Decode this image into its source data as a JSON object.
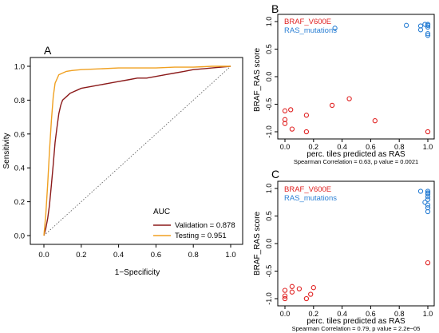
{
  "panel_a": {
    "letter": "A",
    "xlabel": "1−Specificity",
    "ylabel": "Sensitivity",
    "xticks": [
      "0.0",
      "0.2",
      "0.4",
      "0.6",
      "0.8",
      "1.0"
    ],
    "yticks": [
      "0.0",
      "0.2",
      "0.4",
      "0.6",
      "0.8",
      "1.0"
    ],
    "legend_title": "AUC",
    "legend": [
      {
        "label": "Validation = 0.878",
        "color": "#8b1a1a"
      },
      {
        "label": "Testing = 0.951",
        "color": "#f0a020"
      }
    ]
  },
  "panel_b": {
    "letter": "B",
    "xlabel": "perc. tiles predicted as RAS",
    "ylabel": "BRAF_RAS score",
    "xticks": [
      "0.0",
      "0.2",
      "0.4",
      "0.6",
      "0.8",
      "1.0"
    ],
    "yticks": [
      "-1.0",
      "-0.5",
      "0.0",
      "0.5",
      "1.0"
    ],
    "legend": [
      {
        "label": "BRAF_V600E",
        "color": "#e02020"
      },
      {
        "label": "RAS_mutations",
        "color": "#2a7fd4"
      }
    ],
    "annotation": "Spearman Correlation = 0.63, p value = 0.0021"
  },
  "panel_c": {
    "letter": "C",
    "xlabel": "perc. tiles predicted as RAS",
    "ylabel": "BRAF_RAS score",
    "xticks": [
      "0.0",
      "0.2",
      "0.4",
      "0.6",
      "0.8",
      "1.0"
    ],
    "yticks": [
      "-1.0",
      "-0.5",
      "0.0",
      "0.5",
      "1.0"
    ],
    "legend": [
      {
        "label": "BRAF_V600E",
        "color": "#e02020"
      },
      {
        "label": "RAS_mutations",
        "color": "#2a7fd4"
      }
    ],
    "annotation": "Spearman Correlation = 0.79, p value = 2.2e−05"
  },
  "chart_data": [
    {
      "type": "line",
      "xlim": [
        0,
        1
      ],
      "ylim": [
        0,
        1
      ],
      "series": [
        {
          "name": "Validation = 0.878",
          "color": "#8b1a1a",
          "x": [
            0.0,
            0.01,
            0.02,
            0.03,
            0.04,
            0.05,
            0.06,
            0.07,
            0.08,
            0.09,
            0.1,
            0.12,
            0.14,
            0.16,
            0.18,
            0.2,
            0.25,
            0.3,
            0.35,
            0.4,
            0.45,
            0.5,
            0.55,
            0.6,
            0.65,
            0.7,
            0.75,
            0.8,
            0.9,
            1.0
          ],
          "y": [
            0.0,
            0.04,
            0.1,
            0.18,
            0.3,
            0.42,
            0.55,
            0.64,
            0.72,
            0.77,
            0.8,
            0.82,
            0.84,
            0.85,
            0.86,
            0.87,
            0.88,
            0.89,
            0.9,
            0.91,
            0.92,
            0.93,
            0.93,
            0.94,
            0.95,
            0.96,
            0.97,
            0.98,
            0.99,
            1.0
          ]
        },
        {
          "name": "Testing = 0.951",
          "color": "#f0a020",
          "x": [
            0.0,
            0.01,
            0.02,
            0.03,
            0.04,
            0.05,
            0.06,
            0.08,
            0.1,
            0.12,
            0.15,
            0.2,
            0.3,
            0.4,
            0.5,
            0.6,
            0.7,
            0.8,
            0.9,
            1.0
          ],
          "y": [
            0.0,
            0.12,
            0.3,
            0.5,
            0.68,
            0.82,
            0.9,
            0.95,
            0.96,
            0.97,
            0.975,
            0.98,
            0.985,
            0.99,
            0.99,
            0.99,
            0.995,
            0.995,
            1.0,
            1.0
          ]
        }
      ],
      "reference_line": [
        [
          0,
          0
        ],
        [
          1,
          1
        ]
      ]
    },
    {
      "type": "scatter",
      "xlim": [
        0,
        1
      ],
      "ylim": [
        -1.0,
        1.0
      ],
      "series": [
        {
          "name": "BRAF_V600E",
          "color": "#e02020",
          "points": [
            [
              0.0,
              -0.62
            ],
            [
              0.0,
              -0.78
            ],
            [
              0.0,
              -0.85
            ],
            [
              0.04,
              -0.6
            ],
            [
              0.05,
              -0.95
            ],
            [
              0.15,
              -0.7
            ],
            [
              0.15,
              -1.0
            ],
            [
              0.33,
              -0.52
            ],
            [
              0.45,
              -0.4
            ],
            [
              0.63,
              -0.8
            ],
            [
              1.0,
              -1.0
            ]
          ]
        },
        {
          "name": "RAS_mutations",
          "color": "#2a7fd4",
          "points": [
            [
              0.35,
              0.88
            ],
            [
              0.85,
              0.93
            ],
            [
              0.95,
              0.85
            ],
            [
              0.95,
              0.92
            ],
            [
              0.98,
              0.95
            ],
            [
              1.0,
              0.95
            ],
            [
              1.0,
              0.9
            ],
            [
              1.0,
              0.78
            ],
            [
              1.0,
              0.75
            ],
            [
              1.0,
              0.93
            ]
          ]
        }
      ]
    },
    {
      "type": "scatter",
      "xlim": [
        0,
        1
      ],
      "ylim": [
        -1.0,
        1.0
      ],
      "series": [
        {
          "name": "BRAF_V600E",
          "color": "#e02020",
          "points": [
            [
              0.0,
              -0.85
            ],
            [
              0.0,
              -0.95
            ],
            [
              0.0,
              -1.0
            ],
            [
              0.05,
              -0.78
            ],
            [
              0.05,
              -0.88
            ],
            [
              0.1,
              -0.82
            ],
            [
              0.15,
              -1.0
            ],
            [
              0.18,
              -0.92
            ],
            [
              0.2,
              -0.8
            ],
            [
              1.0,
              -0.35
            ]
          ]
        },
        {
          "name": "RAS_mutations",
          "color": "#2a7fd4",
          "points": [
            [
              0.95,
              0.95
            ],
            [
              1.0,
              0.95
            ],
            [
              1.0,
              0.9
            ],
            [
              1.0,
              0.85
            ],
            [
              1.0,
              0.8
            ],
            [
              0.98,
              0.75
            ],
            [
              1.0,
              0.7
            ],
            [
              1.0,
              0.65
            ],
            [
              1.0,
              0.58
            ],
            [
              1.0,
              0.92
            ]
          ]
        }
      ]
    }
  ]
}
